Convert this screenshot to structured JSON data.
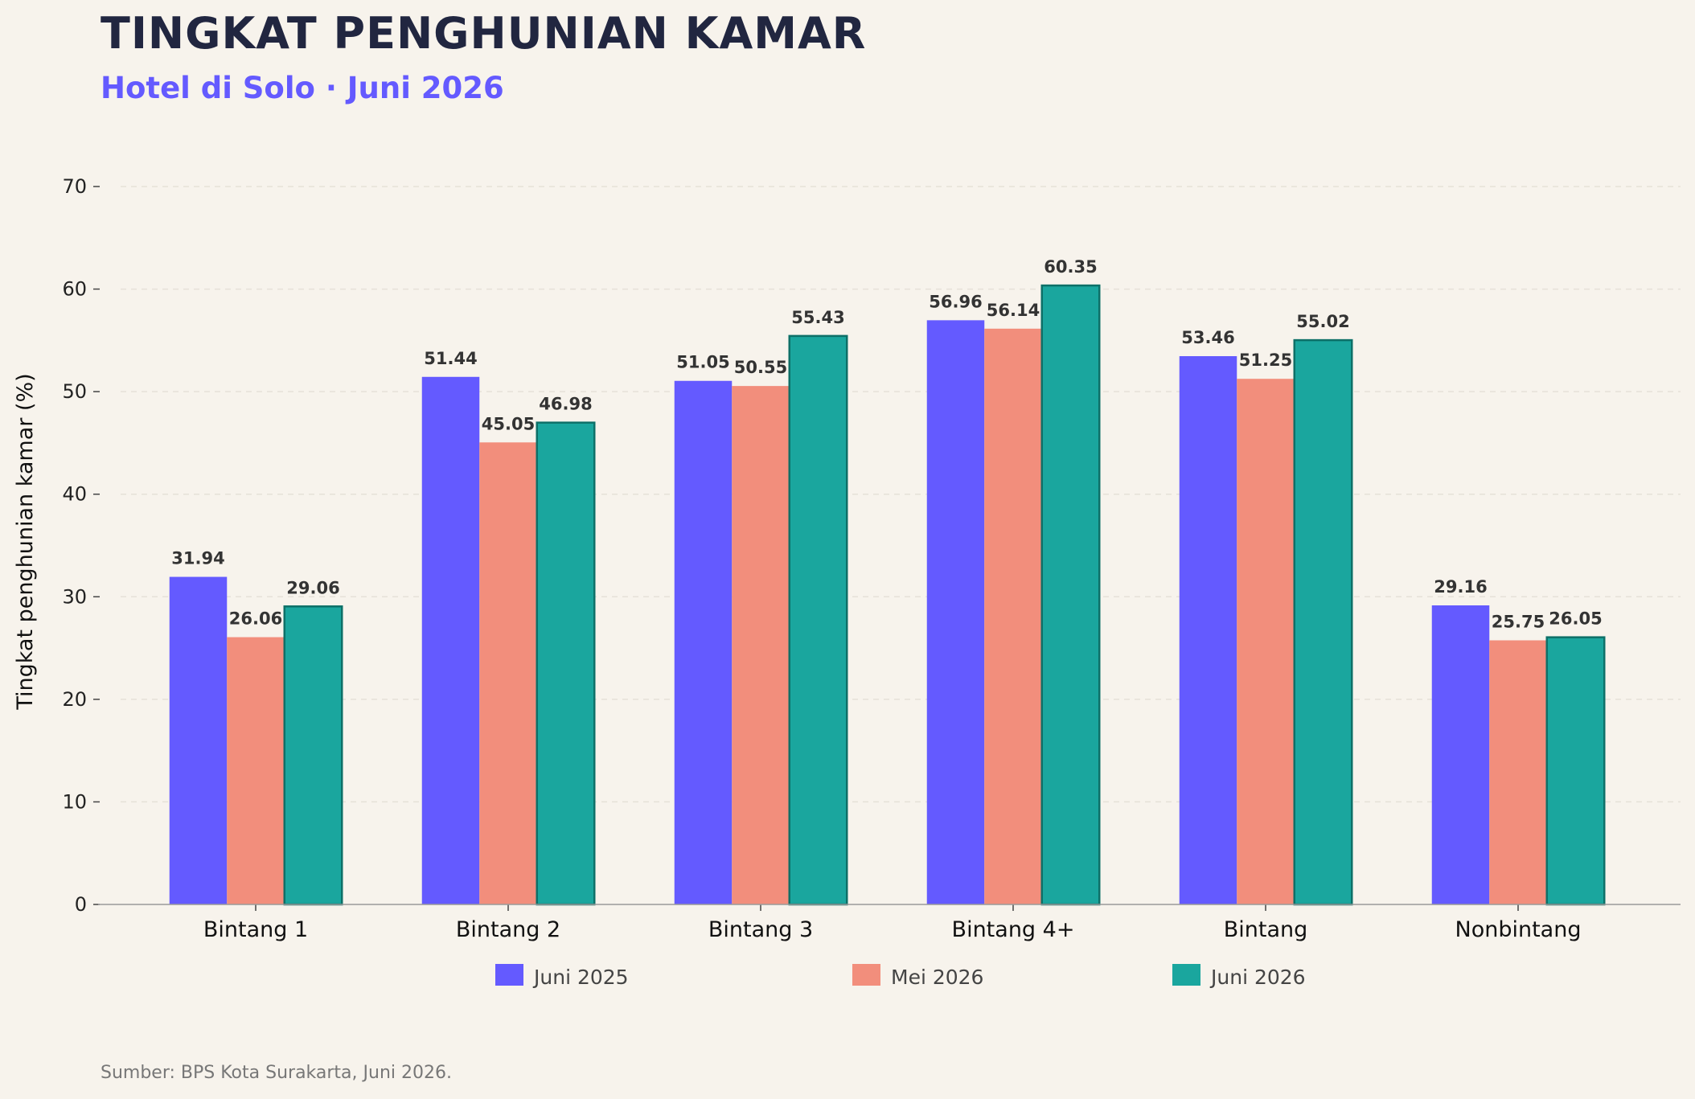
{
  "header": {
    "title": "TINGKAT PENGHUNIAN KAMAR",
    "subtitle": "Hotel di Solo · Juni 2026"
  },
  "footer": {
    "source": "Sumber: BPS Kota Surakarta, Juni 2026."
  },
  "colors": {
    "background": "#f7f3ec",
    "title": "#212640",
    "subtitle": "#645aff",
    "series": [
      "#645aff",
      "#f28e7c",
      "#1aa69e"
    ],
    "highlight_outline": "#0d7068"
  },
  "chart_data": {
    "type": "bar",
    "title": "TINGKAT PENGHUNIAN KAMAR",
    "subtitle": "Hotel di Solo · Juni 2026",
    "xlabel": "",
    "ylabel": "Tingkat penghunian kamar (%)",
    "ylim": [
      0,
      70
    ],
    "yticks": [
      0,
      10,
      20,
      30,
      40,
      50,
      60,
      70
    ],
    "grid": true,
    "legend_position": "bottom",
    "categories": [
      "Bintang 1",
      "Bintang 2",
      "Bintang 3",
      "Bintang 4+",
      "Bintang",
      "Nonbintang"
    ],
    "series": [
      {
        "name": "Juni 2025",
        "color": "#645aff",
        "values": [
          31.94,
          51.44,
          51.05,
          56.96,
          53.46,
          29.16
        ]
      },
      {
        "name": "Mei 2026",
        "color": "#f28e7c",
        "values": [
          26.06,
          45.05,
          50.55,
          56.14,
          51.25,
          25.75
        ]
      },
      {
        "name": "Juni 2026",
        "color": "#1aa69e",
        "values": [
          29.06,
          46.98,
          55.43,
          60.35,
          55.02,
          26.05
        ]
      }
    ]
  }
}
